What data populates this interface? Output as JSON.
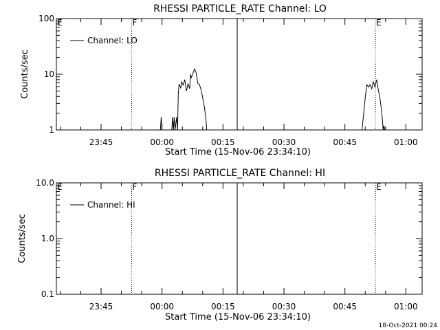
{
  "footer": {
    "timestamp": "18-Oct-2021 00:24"
  },
  "chart_data": [
    {
      "type": "line",
      "title": "RHESSI PARTICLE_RATE Channel: LO",
      "xlabel": "Start Time (15-Nov-06 23:34:10)",
      "ylabel": "Counts/sec",
      "yscale": "log",
      "ylim": [
        1,
        100
      ],
      "xlim_minutes": [
        -11,
        79
      ],
      "xticks": [
        {
          "label": "23:45",
          "t": 0
        },
        {
          "label": "00:00",
          "t": 15
        },
        {
          "label": "00:15",
          "t": 30
        },
        {
          "label": "00:30",
          "t": 45
        },
        {
          "label": "00:45",
          "t": 60
        },
        {
          "label": "01:00",
          "t": 75
        }
      ],
      "yticks": [
        {
          "label": "1",
          "v": 1
        },
        {
          "label": "10",
          "v": 10
        },
        {
          "label": "100",
          "v": 100
        }
      ],
      "legend": {
        "text": "Channel: LO",
        "placement": "top-left"
      },
      "markers": [
        {
          "label": "E",
          "t": -11,
          "style": "dotted"
        },
        {
          "label": "F",
          "t": 7.5,
          "style": "dotted"
        },
        {
          "label": "",
          "t": 33.5,
          "style": "solid"
        },
        {
          "label": "E",
          "t": 67.5,
          "style": "dotted"
        },
        {
          "label": "",
          "t": 85,
          "style": "dotted"
        }
      ],
      "series": [
        {
          "segments": [
            [
              [
                14.6,
                1.0
              ],
              [
                14.8,
                1.7
              ],
              [
                15.0,
                1.0
              ]
            ],
            [
              [
                17.4,
                1.0
              ],
              [
                17.6,
                1.7
              ],
              [
                17.8,
                1.0
              ],
              [
                18.0,
                1.7
              ],
              [
                18.2,
                1.0
              ],
              [
                18.6,
                1.7
              ],
              [
                18.8,
                1.0
              ],
              [
                19.0,
                4.4
              ],
              [
                19.2,
                6.7
              ],
              [
                19.6,
                5.7
              ],
              [
                19.8,
                7.3
              ],
              [
                20.2,
                6.4
              ],
              [
                20.6,
                8.0
              ],
              [
                21.0,
                5.0
              ],
              [
                21.4,
                6.7
              ],
              [
                21.8,
                5.5
              ],
              [
                22.0,
                10.0
              ],
              [
                22.2,
                8.7
              ],
              [
                22.6,
                10.3
              ],
              [
                23.0,
                12.5
              ],
              [
                23.4,
                10.7
              ],
              [
                23.8,
                6.9
              ],
              [
                24.2,
                6.5
              ],
              [
                24.6,
                5.3
              ],
              [
                25.0,
                3.8
              ],
              [
                25.4,
                2.6
              ],
              [
                25.8,
                1.6
              ],
              [
                26.0,
                1.0
              ]
            ],
            [
              [
                64.2,
                1.0
              ],
              [
                64.6,
                1.9
              ],
              [
                65.0,
                3.8
              ],
              [
                65.4,
                6.5
              ],
              [
                65.8,
                5.9
              ],
              [
                66.2,
                6.5
              ],
              [
                66.6,
                5.5
              ],
              [
                67.0,
                7.3
              ],
              [
                67.4,
                5.9
              ],
              [
                67.8,
                8.0
              ],
              [
                68.2,
                5.3
              ],
              [
                68.6,
                3.8
              ],
              [
                69.0,
                2.3
              ],
              [
                69.2,
                1.6
              ],
              [
                69.4,
                1.0
              ],
              [
                69.6,
                1.2
              ],
              [
                69.8,
                1.0
              ]
            ]
          ]
        }
      ]
    },
    {
      "type": "line",
      "title": "RHESSI PARTICLE_RATE Channel: HI",
      "xlabel": "Start Time (15-Nov-06 23:34:10)",
      "ylabel": "Counts/sec",
      "yscale": "log",
      "ylim": [
        0.1,
        10
      ],
      "xlim_minutes": [
        -11,
        79
      ],
      "xticks": [
        {
          "label": "23:45",
          "t": 0
        },
        {
          "label": "00:00",
          "t": 15
        },
        {
          "label": "00:15",
          "t": 30
        },
        {
          "label": "00:30",
          "t": 45
        },
        {
          "label": "00:45",
          "t": 60
        },
        {
          "label": "01:00",
          "t": 75
        }
      ],
      "yticks": [
        {
          "label": "0.1",
          "v": 0.1
        },
        {
          "label": "1.0",
          "v": 1
        },
        {
          "label": "10.0",
          "v": 10
        }
      ],
      "legend": {
        "text": "Channel: HI",
        "placement": "top-left"
      },
      "markers": [
        {
          "label": "E",
          "t": -11,
          "style": "dotted"
        },
        {
          "label": "F",
          "t": 7.5,
          "style": "dotted"
        },
        {
          "label": "",
          "t": 33.5,
          "style": "solid"
        },
        {
          "label": "E",
          "t": 67.5,
          "style": "dotted"
        },
        {
          "label": "",
          "t": 85,
          "style": "dotted"
        }
      ],
      "series": [
        {
          "segments": []
        }
      ]
    }
  ]
}
